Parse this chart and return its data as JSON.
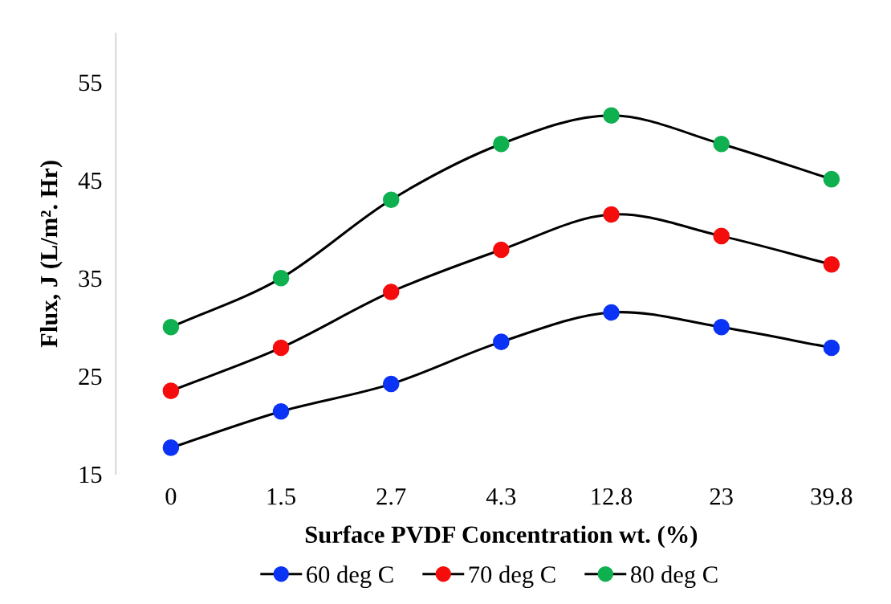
{
  "chart_data": {
    "type": "line",
    "xlabel": "Surface PVDF Concentration wt. (%)",
    "ylabel": "Flux, J (L/m². Hr)",
    "categories": [
      "0",
      "1.5",
      "2.7",
      "4.3",
      "12.8",
      "23",
      "39.8"
    ],
    "series": [
      {
        "name": "60 deg C",
        "color": "#0b33f5",
        "values": [
          17.7,
          21.4,
          24.2,
          28.5,
          31.5,
          30.0,
          27.9
        ]
      },
      {
        "name": "70 deg C",
        "color": "#f50d0d",
        "values": [
          23.5,
          27.9,
          33.6,
          37.9,
          41.5,
          39.3,
          36.4
        ]
      },
      {
        "name": "80 deg C",
        "color": "#0fb050",
        "values": [
          30.0,
          35.0,
          43.0,
          48.7,
          51.6,
          48.7,
          45.1
        ]
      }
    ],
    "ylim": [
      15,
      60
    ],
    "yticks": [
      15,
      25,
      35,
      45,
      55
    ],
    "grid": false,
    "legend": "bottom",
    "marker": "circle",
    "line_style": "solid"
  }
}
